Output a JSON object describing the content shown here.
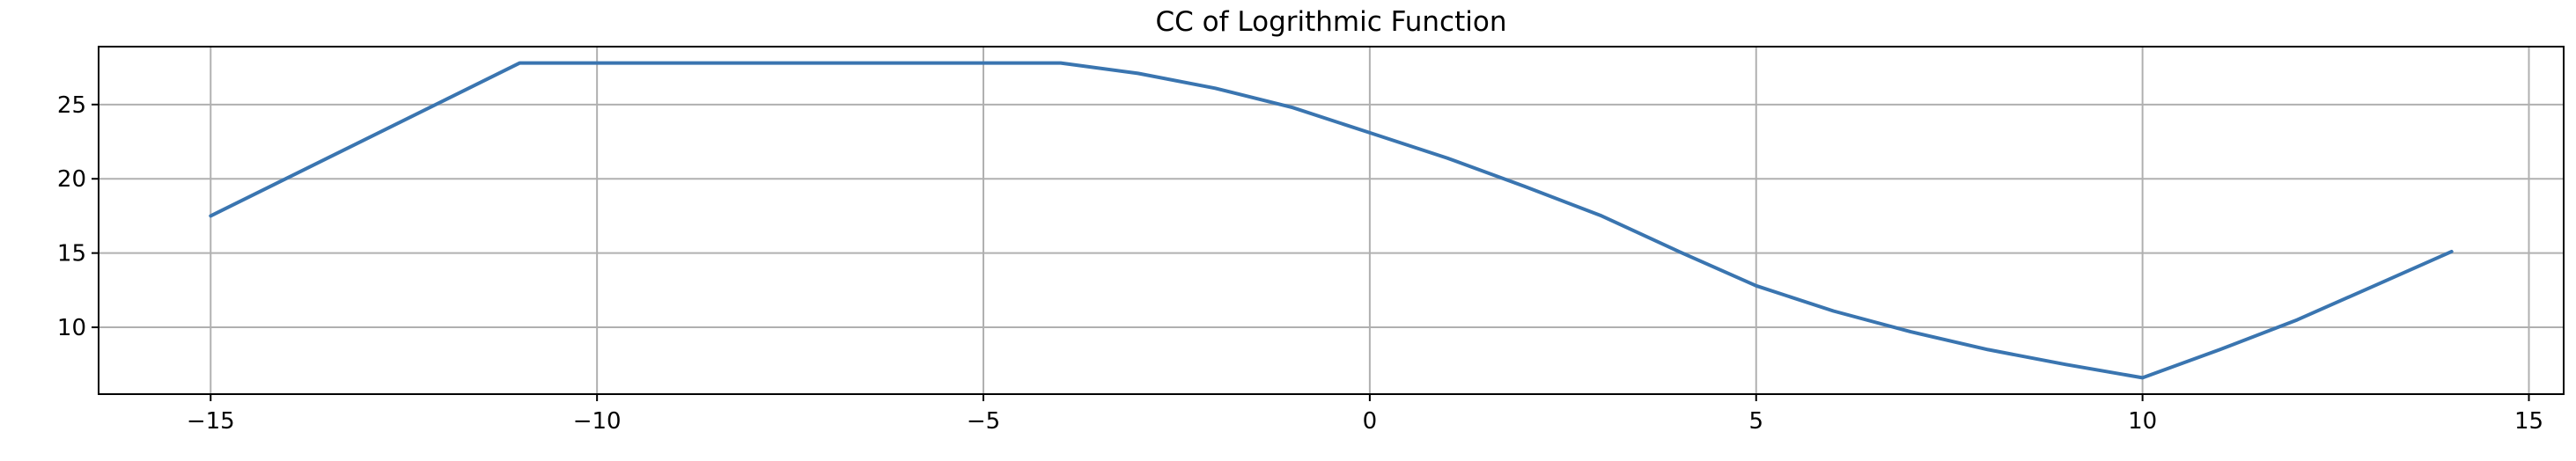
{
  "chart_data": {
    "type": "line",
    "title": "CC of Logrithmic Function",
    "xlabel": "",
    "ylabel": "",
    "xlim": [
      -16.45,
      15.45
    ],
    "ylim": [
      5.5,
      28.9
    ],
    "xticks": [
      -15,
      -10,
      -5,
      0,
      5,
      10,
      15
    ],
    "xtick_labels": [
      "−15",
      "−10",
      "−5",
      "0",
      "5",
      "10",
      "15"
    ],
    "yticks": [
      10,
      15,
      20,
      25
    ],
    "ytick_labels": [
      "10",
      "15",
      "20",
      "25"
    ],
    "grid": true,
    "legend": "none",
    "series": [
      {
        "color": "#3a75b0",
        "x": [
          -15,
          -11,
          -10,
          -9,
          -8,
          -7,
          -6,
          -5,
          -4,
          -3,
          -2,
          -1,
          0,
          1,
          2,
          3,
          4,
          5,
          6,
          7,
          8,
          9,
          10,
          11,
          12,
          13,
          14
        ],
        "y": [
          17.5,
          27.8,
          27.8,
          27.8,
          27.8,
          27.8,
          27.8,
          27.8,
          27.8,
          27.1,
          26.1,
          24.8,
          23.1,
          21.4,
          19.5,
          17.5,
          15.1,
          12.8,
          11.1,
          9.7,
          8.5,
          7.5,
          6.6,
          8.5,
          10.5,
          12.8,
          15.1
        ]
      }
    ]
  }
}
